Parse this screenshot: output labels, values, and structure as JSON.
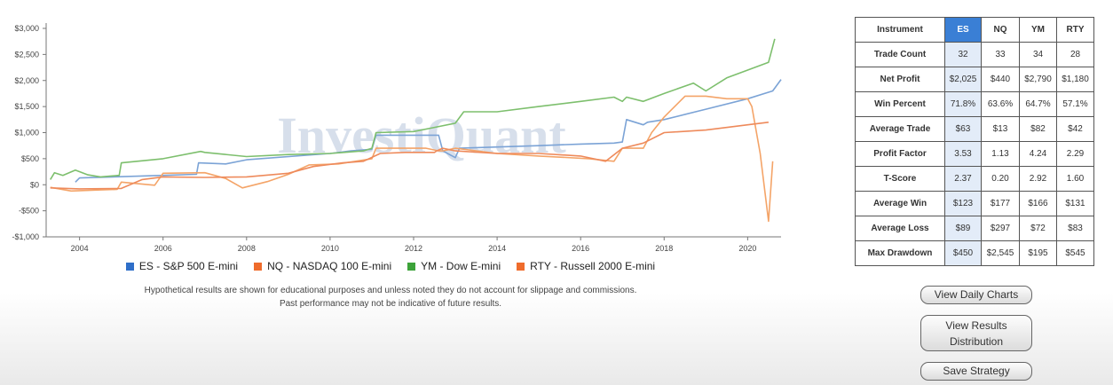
{
  "chart_data": {
    "type": "line",
    "title": "",
    "xlabel": "",
    "ylabel": "",
    "xlim": [
      2003.2,
      2020.8
    ],
    "ylim": [
      -1000,
      3000
    ],
    "yticks": [
      3000,
      2500,
      2000,
      1500,
      1000,
      500,
      0,
      -500,
      -1000
    ],
    "ytick_labels": [
      "$3,000",
      "$2,500",
      "$2,000",
      "$1,500",
      "$1,000",
      "$500",
      "$0",
      "-$500",
      "-$1,000"
    ],
    "xticks": [
      2004,
      2006,
      2008,
      2010,
      2012,
      2014,
      2016,
      2018,
      2020
    ],
    "xtick_labels": [
      "2004",
      "2006",
      "2008",
      "2010",
      "2012",
      "2014",
      "2016",
      "2018",
      "2020"
    ],
    "grid": false,
    "legend": "bottom",
    "watermark": "InvestiQuant",
    "series": [
      {
        "name": "ES - S&P 500 E-mini",
        "color": "#7ba3d6",
        "points": [
          [
            2003.9,
            50
          ],
          [
            2004.0,
            130
          ],
          [
            2006.0,
            180
          ],
          [
            2006.8,
            200
          ],
          [
            2006.85,
            420
          ],
          [
            2007.5,
            400
          ],
          [
            2008.0,
            480
          ],
          [
            2010.0,
            600
          ],
          [
            2010.5,
            650
          ],
          [
            2011.0,
            680
          ],
          [
            2011.1,
            950
          ],
          [
            2012.0,
            950
          ],
          [
            2012.6,
            950
          ],
          [
            2012.7,
            650
          ],
          [
            2013.0,
            520
          ],
          [
            2013.1,
            700
          ],
          [
            2015.0,
            750
          ],
          [
            2016.0,
            780
          ],
          [
            2016.8,
            800
          ],
          [
            2017.0,
            820
          ],
          [
            2017.1,
            1250
          ],
          [
            2017.5,
            1150
          ],
          [
            2017.6,
            1200
          ],
          [
            2018.0,
            1250
          ],
          [
            2019.0,
            1450
          ],
          [
            2020.0,
            1650
          ],
          [
            2020.6,
            1800
          ],
          [
            2020.8,
            2020
          ]
        ]
      },
      {
        "name": "NQ - NASDAQ 100 E-mini",
        "color": "#f4a468",
        "points": [
          [
            2003.3,
            -50
          ],
          [
            2003.8,
            -120
          ],
          [
            2004.5,
            -100
          ],
          [
            2004.9,
            -90
          ],
          [
            2005.0,
            50
          ],
          [
            2005.4,
            20
          ],
          [
            2005.8,
            -10
          ],
          [
            2006.0,
            220
          ],
          [
            2007.0,
            230
          ],
          [
            2007.5,
            120
          ],
          [
            2007.9,
            -60
          ],
          [
            2008.5,
            60
          ],
          [
            2009.0,
            200
          ],
          [
            2009.5,
            380
          ],
          [
            2010.2,
            400
          ],
          [
            2011.0,
            500
          ],
          [
            2011.1,
            700
          ],
          [
            2011.8,
            700
          ],
          [
            2012.3,
            700
          ],
          [
            2012.6,
            650
          ],
          [
            2012.7,
            650
          ],
          [
            2013.0,
            700
          ],
          [
            2014.0,
            600
          ],
          [
            2015.0,
            550
          ],
          [
            2016.2,
            500
          ],
          [
            2016.8,
            450
          ],
          [
            2017.0,
            700
          ],
          [
            2017.5,
            700
          ],
          [
            2017.7,
            1000
          ],
          [
            2018.0,
            1300
          ],
          [
            2018.5,
            1700
          ],
          [
            2019.0,
            1700
          ],
          [
            2019.5,
            1650
          ],
          [
            2020.0,
            1650
          ],
          [
            2020.1,
            1500
          ],
          [
            2020.3,
            600
          ],
          [
            2020.5,
            -700
          ],
          [
            2020.6,
            450
          ]
        ]
      },
      {
        "name": "YM - Dow E-mini",
        "color": "#7dbf6d",
        "points": [
          [
            2003.3,
            100
          ],
          [
            2003.4,
            230
          ],
          [
            2003.6,
            180
          ],
          [
            2003.9,
            280
          ],
          [
            2004.2,
            190
          ],
          [
            2004.5,
            150
          ],
          [
            2004.95,
            180
          ],
          [
            2005.0,
            420
          ],
          [
            2006.0,
            500
          ],
          [
            2006.9,
            640
          ],
          [
            2007.0,
            620
          ],
          [
            2008.0,
            540
          ],
          [
            2009.0,
            580
          ],
          [
            2010.0,
            600
          ],
          [
            2010.8,
            650
          ],
          [
            2011.0,
            700
          ],
          [
            2011.1,
            1000
          ],
          [
            2012.0,
            1020
          ],
          [
            2012.5,
            1100
          ],
          [
            2013.0,
            1180
          ],
          [
            2013.2,
            1400
          ],
          [
            2014.0,
            1400
          ],
          [
            2015.0,
            1500
          ],
          [
            2016.0,
            1600
          ],
          [
            2016.8,
            1680
          ],
          [
            2017.0,
            1600
          ],
          [
            2017.1,
            1680
          ],
          [
            2017.5,
            1600
          ],
          [
            2018.0,
            1750
          ],
          [
            2018.7,
            1950
          ],
          [
            2019.0,
            1800
          ],
          [
            2019.5,
            2050
          ],
          [
            2020.0,
            2200
          ],
          [
            2020.5,
            2350
          ],
          [
            2020.65,
            2800
          ]
        ]
      },
      {
        "name": "RTY - Russell 2000 E-mini",
        "color": "#ee8a5b",
        "points": [
          [
            2003.3,
            -60
          ],
          [
            2004.0,
            -80
          ],
          [
            2005.0,
            -70
          ],
          [
            2005.5,
            100
          ],
          [
            2006.0,
            150
          ],
          [
            2007.0,
            140
          ],
          [
            2008.0,
            150
          ],
          [
            2009.0,
            220
          ],
          [
            2009.6,
            350
          ],
          [
            2010.3,
            420
          ],
          [
            2010.8,
            450
          ],
          [
            2011.2,
            600
          ],
          [
            2011.8,
            620
          ],
          [
            2012.5,
            620
          ],
          [
            2012.55,
            650
          ],
          [
            2012.7,
            700
          ],
          [
            2013.0,
            650
          ],
          [
            2014.0,
            600
          ],
          [
            2015.0,
            600
          ],
          [
            2016.0,
            550
          ],
          [
            2016.6,
            450
          ],
          [
            2017.0,
            700
          ],
          [
            2017.5,
            800
          ],
          [
            2018.0,
            1000
          ],
          [
            2019.0,
            1050
          ],
          [
            2020.0,
            1150
          ],
          [
            2020.5,
            1200
          ]
        ]
      }
    ]
  },
  "disclaimer_line1": "Hypothetical results are shown for educational purposes and unless noted they do not account for slippage and commissions.",
  "disclaimer_line2": "Past performance may not be indicative of future results.",
  "table": {
    "header": [
      "Instrument",
      "ES",
      "NQ",
      "YM",
      "RTY"
    ],
    "rows": [
      {
        "label": "Trade Count",
        "values": [
          "32",
          "33",
          "34",
          "28"
        ]
      },
      {
        "label": "Net Profit",
        "values": [
          "$2,025",
          "$440",
          "$2,790",
          "$1,180"
        ]
      },
      {
        "label": "Win Percent",
        "values": [
          "71.8%",
          "63.6%",
          "64.7%",
          "57.1%"
        ]
      },
      {
        "label": "Average Trade",
        "values": [
          "$63",
          "$13",
          "$82",
          "$42"
        ]
      },
      {
        "label": "Profit Factor",
        "values": [
          "3.53",
          "1.13",
          "4.24",
          "2.29"
        ]
      },
      {
        "label": "T-Score",
        "values": [
          "2.37",
          "0.20",
          "2.92",
          "1.60"
        ]
      },
      {
        "label": "Average Win",
        "values": [
          "$123",
          "$177",
          "$166",
          "$131"
        ]
      },
      {
        "label": "Average Loss",
        "values": [
          "$89",
          "$297",
          "$72",
          "$83"
        ]
      },
      {
        "label": "Max Drawdown",
        "values": [
          "$450",
          "$2,545",
          "$195",
          "$545"
        ]
      }
    ]
  },
  "buttons": {
    "view_daily_charts": "View Daily Charts",
    "view_results_line1": "View Results",
    "view_results_line2": "Distribution",
    "save_strategy": "Save Strategy"
  }
}
